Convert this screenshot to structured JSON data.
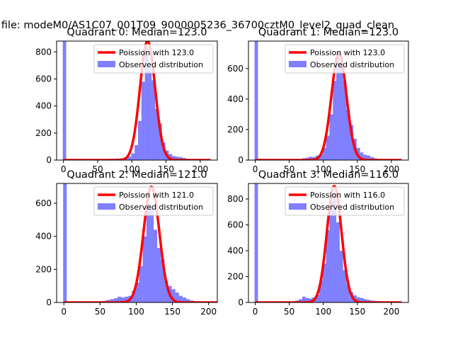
{
  "suptitle": "n file: modeM0/AS1C07_001T09_9000005236_36700cztM0_level2_quad_clean",
  "colors": {
    "histogram": "#0000ff",
    "histogram_opacity": 0.5,
    "poisson_line": "#ff0000",
    "axes": "#000000",
    "background": "#ffffff"
  },
  "chart_data": [
    {
      "type": "bar",
      "title": "Quadrant 0: Median=123.0",
      "xlim": [
        -10,
        225
      ],
      "ylim": [
        0,
        880
      ],
      "xticks": [
        0,
        50,
        100,
        150,
        200
      ],
      "yticks": [
        0,
        200,
        400,
        600,
        800
      ],
      "legend": "upper right",
      "series": [
        {
          "name": "Poission with 123.0",
          "kind": "line",
          "peak_x": 123,
          "peak_y": 880
        },
        {
          "name": "Observed distribution",
          "kind": "histogram",
          "bins": [
            [
              -1,
              4,
              880
            ],
            [
              4,
              9,
              3
            ],
            [
              64,
              69,
              6
            ],
            [
              69,
              74,
              10
            ],
            [
              74,
              79,
              11
            ],
            [
              79,
              84,
              12
            ],
            [
              84,
              89,
              14
            ],
            [
              89,
              94,
              16
            ],
            [
              94,
              99,
              25
            ],
            [
              99,
              104,
              50
            ],
            [
              104,
              109,
              110
            ],
            [
              109,
              114,
              290
            ],
            [
              114,
              119,
              580
            ],
            [
              119,
              124,
              840
            ],
            [
              124,
              129,
              670
            ],
            [
              129,
              134,
              590
            ],
            [
              134,
              139,
              380
            ],
            [
              139,
              144,
              270
            ],
            [
              144,
              149,
              130
            ],
            [
              149,
              154,
              70
            ],
            [
              154,
              159,
              45
            ],
            [
              159,
              164,
              30
            ],
            [
              164,
              169,
              25
            ],
            [
              169,
              174,
              22
            ],
            [
              174,
              179,
              16
            ],
            [
              179,
              184,
              10
            ],
            [
              184,
              189,
              6
            ],
            [
              189,
              194,
              4
            ]
          ]
        }
      ]
    },
    {
      "type": "bar",
      "title": "Quadrant 1: Median=123.0",
      "xlim": [
        -10,
        225
      ],
      "ylim": [
        0,
        780
      ],
      "xticks": [
        0,
        50,
        100,
        150,
        200
      ],
      "yticks": [
        0,
        200,
        400,
        600
      ],
      "legend": "upper right",
      "series": [
        {
          "name": "Poission with 123.0",
          "kind": "line",
          "peak_x": 123,
          "peak_y": 700
        },
        {
          "name": "Observed distribution",
          "kind": "histogram",
          "bins": [
            [
              -1,
              4,
              780
            ],
            [
              4,
              9,
              3
            ],
            [
              64,
              69,
              7
            ],
            [
              69,
              74,
              12
            ],
            [
              74,
              79,
              16
            ],
            [
              79,
              84,
              22
            ],
            [
              84,
              89,
              20
            ],
            [
              89,
              94,
              30
            ],
            [
              94,
              99,
              35
            ],
            [
              99,
              104,
              80
            ],
            [
              104,
              109,
              160
            ],
            [
              109,
              114,
              300
            ],
            [
              114,
              119,
              520
            ],
            [
              119,
              124,
              680
            ],
            [
              124,
              129,
              640
            ],
            [
              129,
              134,
              520
            ],
            [
              134,
              139,
              330
            ],
            [
              139,
              144,
              230
            ],
            [
              144,
              149,
              140
            ],
            [
              149,
              154,
              80
            ],
            [
              154,
              159,
              50
            ],
            [
              159,
              164,
              35
            ],
            [
              164,
              169,
              30
            ],
            [
              169,
              174,
              20
            ],
            [
              174,
              179,
              12
            ],
            [
              179,
              184,
              6
            ]
          ]
        }
      ]
    },
    {
      "type": "bar",
      "title": "Quadrant 2: Median=121.0",
      "xlim": [
        -10,
        212
      ],
      "ylim": [
        0,
        720
      ],
      "xticks": [
        0,
        50,
        100,
        150,
        200
      ],
      "yticks": [
        0,
        200,
        400,
        600
      ],
      "legend": "upper right",
      "series": [
        {
          "name": "Poission with 121.0",
          "kind": "line",
          "peak_x": 121,
          "peak_y": 700
        },
        {
          "name": "Observed distribution",
          "kind": "histogram",
          "bins": [
            [
              -1,
              4,
              720
            ],
            [
              4,
              9,
              3
            ],
            [
              49,
              54,
              5
            ],
            [
              54,
              59,
              10
            ],
            [
              59,
              64,
              15
            ],
            [
              64,
              69,
              20
            ],
            [
              69,
              74,
              25
            ],
            [
              74,
              79,
              35
            ],
            [
              79,
              84,
              30
            ],
            [
              84,
              89,
              35
            ],
            [
              89,
              94,
              40
            ],
            [
              94,
              99,
              70
            ],
            [
              99,
              104,
              120
            ],
            [
              104,
              109,
              220
            ],
            [
              109,
              114,
              400
            ],
            [
              114,
              119,
              600
            ],
            [
              119,
              124,
              580
            ],
            [
              124,
              129,
              440
            ],
            [
              129,
              134,
              330
            ],
            [
              134,
              139,
              260
            ],
            [
              139,
              144,
              130
            ],
            [
              144,
              149,
              100
            ],
            [
              149,
              154,
              80
            ],
            [
              154,
              159,
              60
            ],
            [
              159,
              164,
              40
            ],
            [
              164,
              169,
              30
            ],
            [
              169,
              174,
              20
            ],
            [
              174,
              179,
              12
            ],
            [
              179,
              184,
              8
            ]
          ]
        }
      ]
    },
    {
      "type": "bar",
      "title": "Quadrant 3: Median=116.0",
      "xlim": [
        -10,
        225
      ],
      "ylim": [
        0,
        920
      ],
      "xticks": [
        0,
        50,
        100,
        150,
        200
      ],
      "yticks": [
        0,
        200,
        400,
        600,
        800
      ],
      "legend": "upper right",
      "series": [
        {
          "name": "Poission with 116.0",
          "kind": "line",
          "peak_x": 116,
          "peak_y": 900
        },
        {
          "name": "Observed distribution",
          "kind": "histogram",
          "bins": [
            [
              -1,
              4,
              920
            ],
            [
              4,
              9,
              3
            ],
            [
              54,
              59,
              6
            ],
            [
              59,
              64,
              15
            ],
            [
              64,
              69,
              25
            ],
            [
              69,
              74,
              45
            ],
            [
              74,
              79,
              35
            ],
            [
              79,
              84,
              30
            ],
            [
              84,
              89,
              40
            ],
            [
              89,
              94,
              60
            ],
            [
              94,
              99,
              170
            ],
            [
              99,
              104,
              300
            ],
            [
              104,
              109,
              560
            ],
            [
              109,
              114,
              790
            ],
            [
              114,
              119,
              840
            ],
            [
              119,
              124,
              620
            ],
            [
              124,
              129,
              400
            ],
            [
              129,
              134,
              250
            ],
            [
              134,
              139,
              140
            ],
            [
              139,
              144,
              80
            ],
            [
              144,
              149,
              55
            ],
            [
              149,
              154,
              40
            ],
            [
              154,
              159,
              35
            ],
            [
              159,
              164,
              25
            ],
            [
              164,
              169,
              20
            ],
            [
              169,
              174,
              15
            ],
            [
              174,
              179,
              12
            ],
            [
              179,
              184,
              10
            ],
            [
              184,
              189,
              8
            ],
            [
              189,
              194,
              6
            ]
          ]
        }
      ]
    }
  ]
}
